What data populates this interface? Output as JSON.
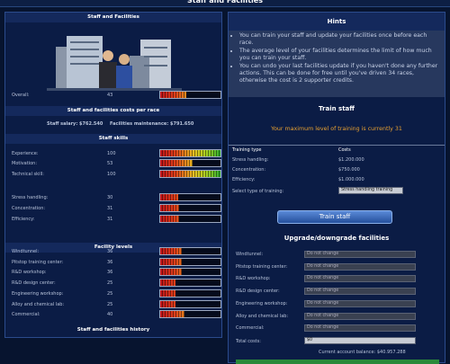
{
  "title": "Staff and Facilities",
  "left": {
    "header": "Staff and Facilities",
    "overall": {
      "label": "Overall:",
      "value": 43
    },
    "costs": {
      "header": "Staff and facilities costs per race",
      "salary": "Staff salary: $762.540",
      "maintenance": "Facilities maintenance: $791.650"
    },
    "skills": {
      "header": "Staff skills",
      "rows": [
        {
          "label": "Experience:",
          "value": 100
        },
        {
          "label": "Motivation:",
          "value": 53
        },
        {
          "label": "Technical skill:",
          "value": 100
        },
        {
          "label": "Stress handling:",
          "value": 30
        },
        {
          "label": "Concentration:",
          "value": 31
        },
        {
          "label": "Efficiency:",
          "value": 31
        }
      ]
    },
    "facilities": {
      "header": "Facility levels",
      "rows": [
        {
          "label": "Windtunnel:",
          "value": 36
        },
        {
          "label": "Pitstop training center:",
          "value": 36
        },
        {
          "label": "R&D workshop:",
          "value": 36
        },
        {
          "label": "R&D design center:",
          "value": 25
        },
        {
          "label": "Engineering workshop:",
          "value": 25
        },
        {
          "label": "Alloy and chemical lab:",
          "value": 25
        },
        {
          "label": "Commercial:",
          "value": 40
        }
      ]
    },
    "history_header": "Staff and facilities history"
  },
  "right": {
    "hints": {
      "header": "Hints",
      "items": [
        "You can train your staff and update your facilities once before each race.",
        "The average level of your facilities determines the limit of how much you can train your staff.",
        "You can undo your last facilities update if you haven't done any further actions. This can be done for free until you've driven 34 races, otherwise the cost is 2 supporter credits."
      ]
    },
    "train": {
      "header": "Train staff",
      "max_text": "Your maximum level of training is currently 31",
      "columns": [
        "Training type",
        "Costs"
      ],
      "rows": [
        [
          "Stress handling:",
          "$1.200.000"
        ],
        [
          "Concentration:",
          "$750.000"
        ],
        [
          "Efficiency:",
          "$1.000.000"
        ]
      ],
      "select_label": "Select type of training:",
      "select_value": "Stress handling training",
      "button": "Train staff"
    },
    "upgrade": {
      "header": "Upgrade/downgrade facilities",
      "rows": [
        {
          "label": "Windtunnel:",
          "value": "Do not change"
        },
        {
          "label": "Pitstop training center:",
          "value": "Do not change"
        },
        {
          "label": "R&D workshop:",
          "value": "Do not change"
        },
        {
          "label": "R&D design center:",
          "value": "Do not change"
        },
        {
          "label": "Engineering workshop:",
          "value": "Do not change"
        },
        {
          "label": "Alloy and chemical lab:",
          "value": "Do not change"
        },
        {
          "label": "Commercial:",
          "value": "Do not change"
        }
      ],
      "total_label": "Total costs:",
      "total_value": "$0",
      "balance": "Current account balance: $40.957.288"
    }
  }
}
